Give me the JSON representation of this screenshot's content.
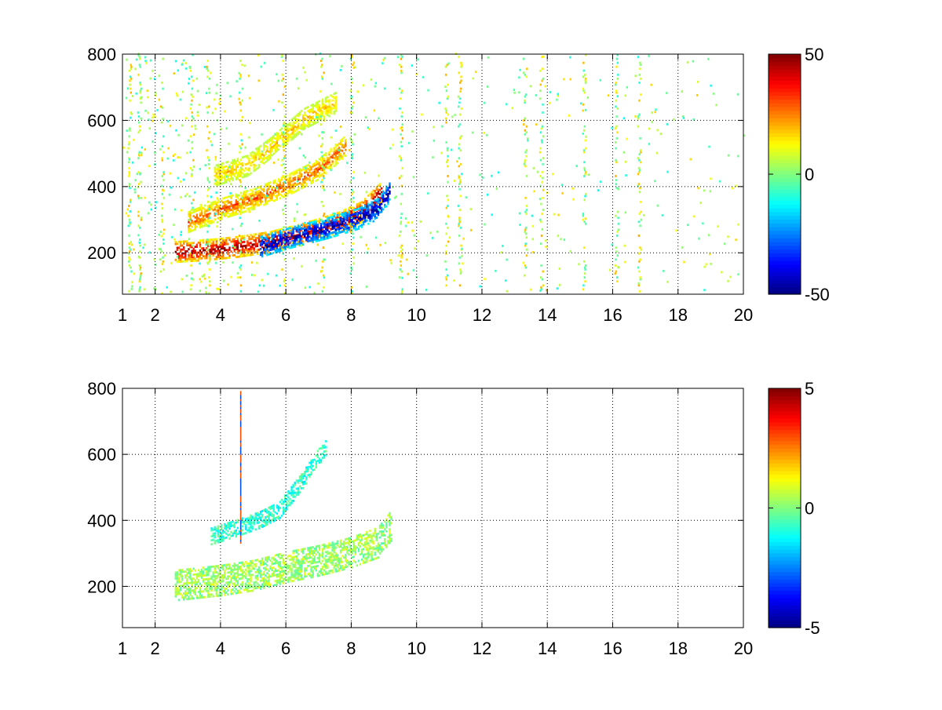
{
  "chart_data": [
    {
      "type": "heatmap",
      "title": "",
      "xlabel": "",
      "ylabel": "",
      "xlim": [
        1,
        20
      ],
      "ylim": [
        75,
        800
      ],
      "xticks": [
        1,
        2,
        4,
        6,
        8,
        10,
        12,
        14,
        16,
        18,
        20
      ],
      "yticks": [
        200,
        400,
        600,
        800
      ],
      "grid": true,
      "colormap": "jet",
      "colorbar": {
        "min": -50,
        "max": 50,
        "ticks": [
          50,
          0,
          -50
        ]
      },
      "features": [
        {
          "kind": "ridge",
          "label": "primary ridge (red)",
          "points": [
            [
              2.6,
              200
            ],
            [
              3.5,
              205
            ],
            [
              4.5,
              215
            ],
            [
              5.5,
              230
            ],
            [
              6.5,
              255
            ],
            [
              7.5,
              285
            ],
            [
              8.3,
              320
            ],
            [
              8.9,
              380
            ]
          ],
          "value": 45
        },
        {
          "kind": "ridge",
          "label": "secondary ridge (blue)",
          "points": [
            [
              5.2,
              215
            ],
            [
              6.2,
              245
            ],
            [
              7.2,
              270
            ],
            [
              8.2,
              300
            ],
            [
              8.8,
              330
            ],
            [
              9.2,
              390
            ]
          ],
          "value": -45
        },
        {
          "kind": "ridge",
          "label": "upper harmonic (orange)",
          "points": [
            [
              3.0,
              290
            ],
            [
              4.0,
              330
            ],
            [
              5.0,
              360
            ],
            [
              6.0,
              400
            ],
            [
              7.0,
              450
            ],
            [
              7.8,
              520
            ]
          ],
          "value": 28
        },
        {
          "kind": "ridge",
          "label": "upper harmonic (yellow)",
          "points": [
            [
              3.8,
              430
            ],
            [
              4.8,
              460
            ],
            [
              5.6,
              520
            ],
            [
              6.5,
              600
            ],
            [
              7.5,
              650
            ]
          ],
          "value": 18
        },
        {
          "kind": "vertical_streaks",
          "x": [
            1.2,
            1.5,
            2.2,
            3.1,
            3.6,
            4.6,
            5.9,
            7.1,
            8.0,
            9.5,
            10.9,
            11.3,
            13.3,
            13.8,
            15.1,
            16.1,
            16.8
          ],
          "value": 6
        }
      ]
    },
    {
      "type": "heatmap",
      "title": "",
      "xlabel": "",
      "ylabel": "",
      "xlim": [
        1,
        20
      ],
      "ylim": [
        75,
        800
      ],
      "xticks": [
        1,
        2,
        4,
        6,
        8,
        10,
        12,
        14,
        16,
        18,
        20
      ],
      "yticks": [
        200,
        400,
        600,
        800
      ],
      "grid": true,
      "colormap": "jet",
      "colorbar": {
        "min": -5,
        "max": 5,
        "ticks": [
          5,
          0,
          -5
        ]
      },
      "features": [
        {
          "kind": "band",
          "label": "main band (light green)",
          "points": [
            [
              2.6,
              200
            ],
            [
              4.0,
              215
            ],
            [
              5.0,
              230
            ],
            [
              6.0,
              255
            ],
            [
              7.0,
              275
            ],
            [
              8.0,
              300
            ],
            [
              8.8,
              330
            ],
            [
              9.2,
              380
            ]
          ],
          "halfwidth": 45,
          "value": 0.3
        },
        {
          "kind": "band",
          "label": "upper arc (cyan/orange)",
          "points": [
            [
              3.7,
              350
            ],
            [
              4.5,
              375
            ],
            [
              5.2,
              400
            ],
            [
              5.8,
              430
            ],
            [
              6.5,
              520
            ],
            [
              7.2,
              620
            ]
          ],
          "halfwidth": 25,
          "value": -0.8
        },
        {
          "kind": "vertical_line",
          "x": 4.6,
          "from": 330,
          "to": 790,
          "value": -3
        }
      ]
    }
  ]
}
